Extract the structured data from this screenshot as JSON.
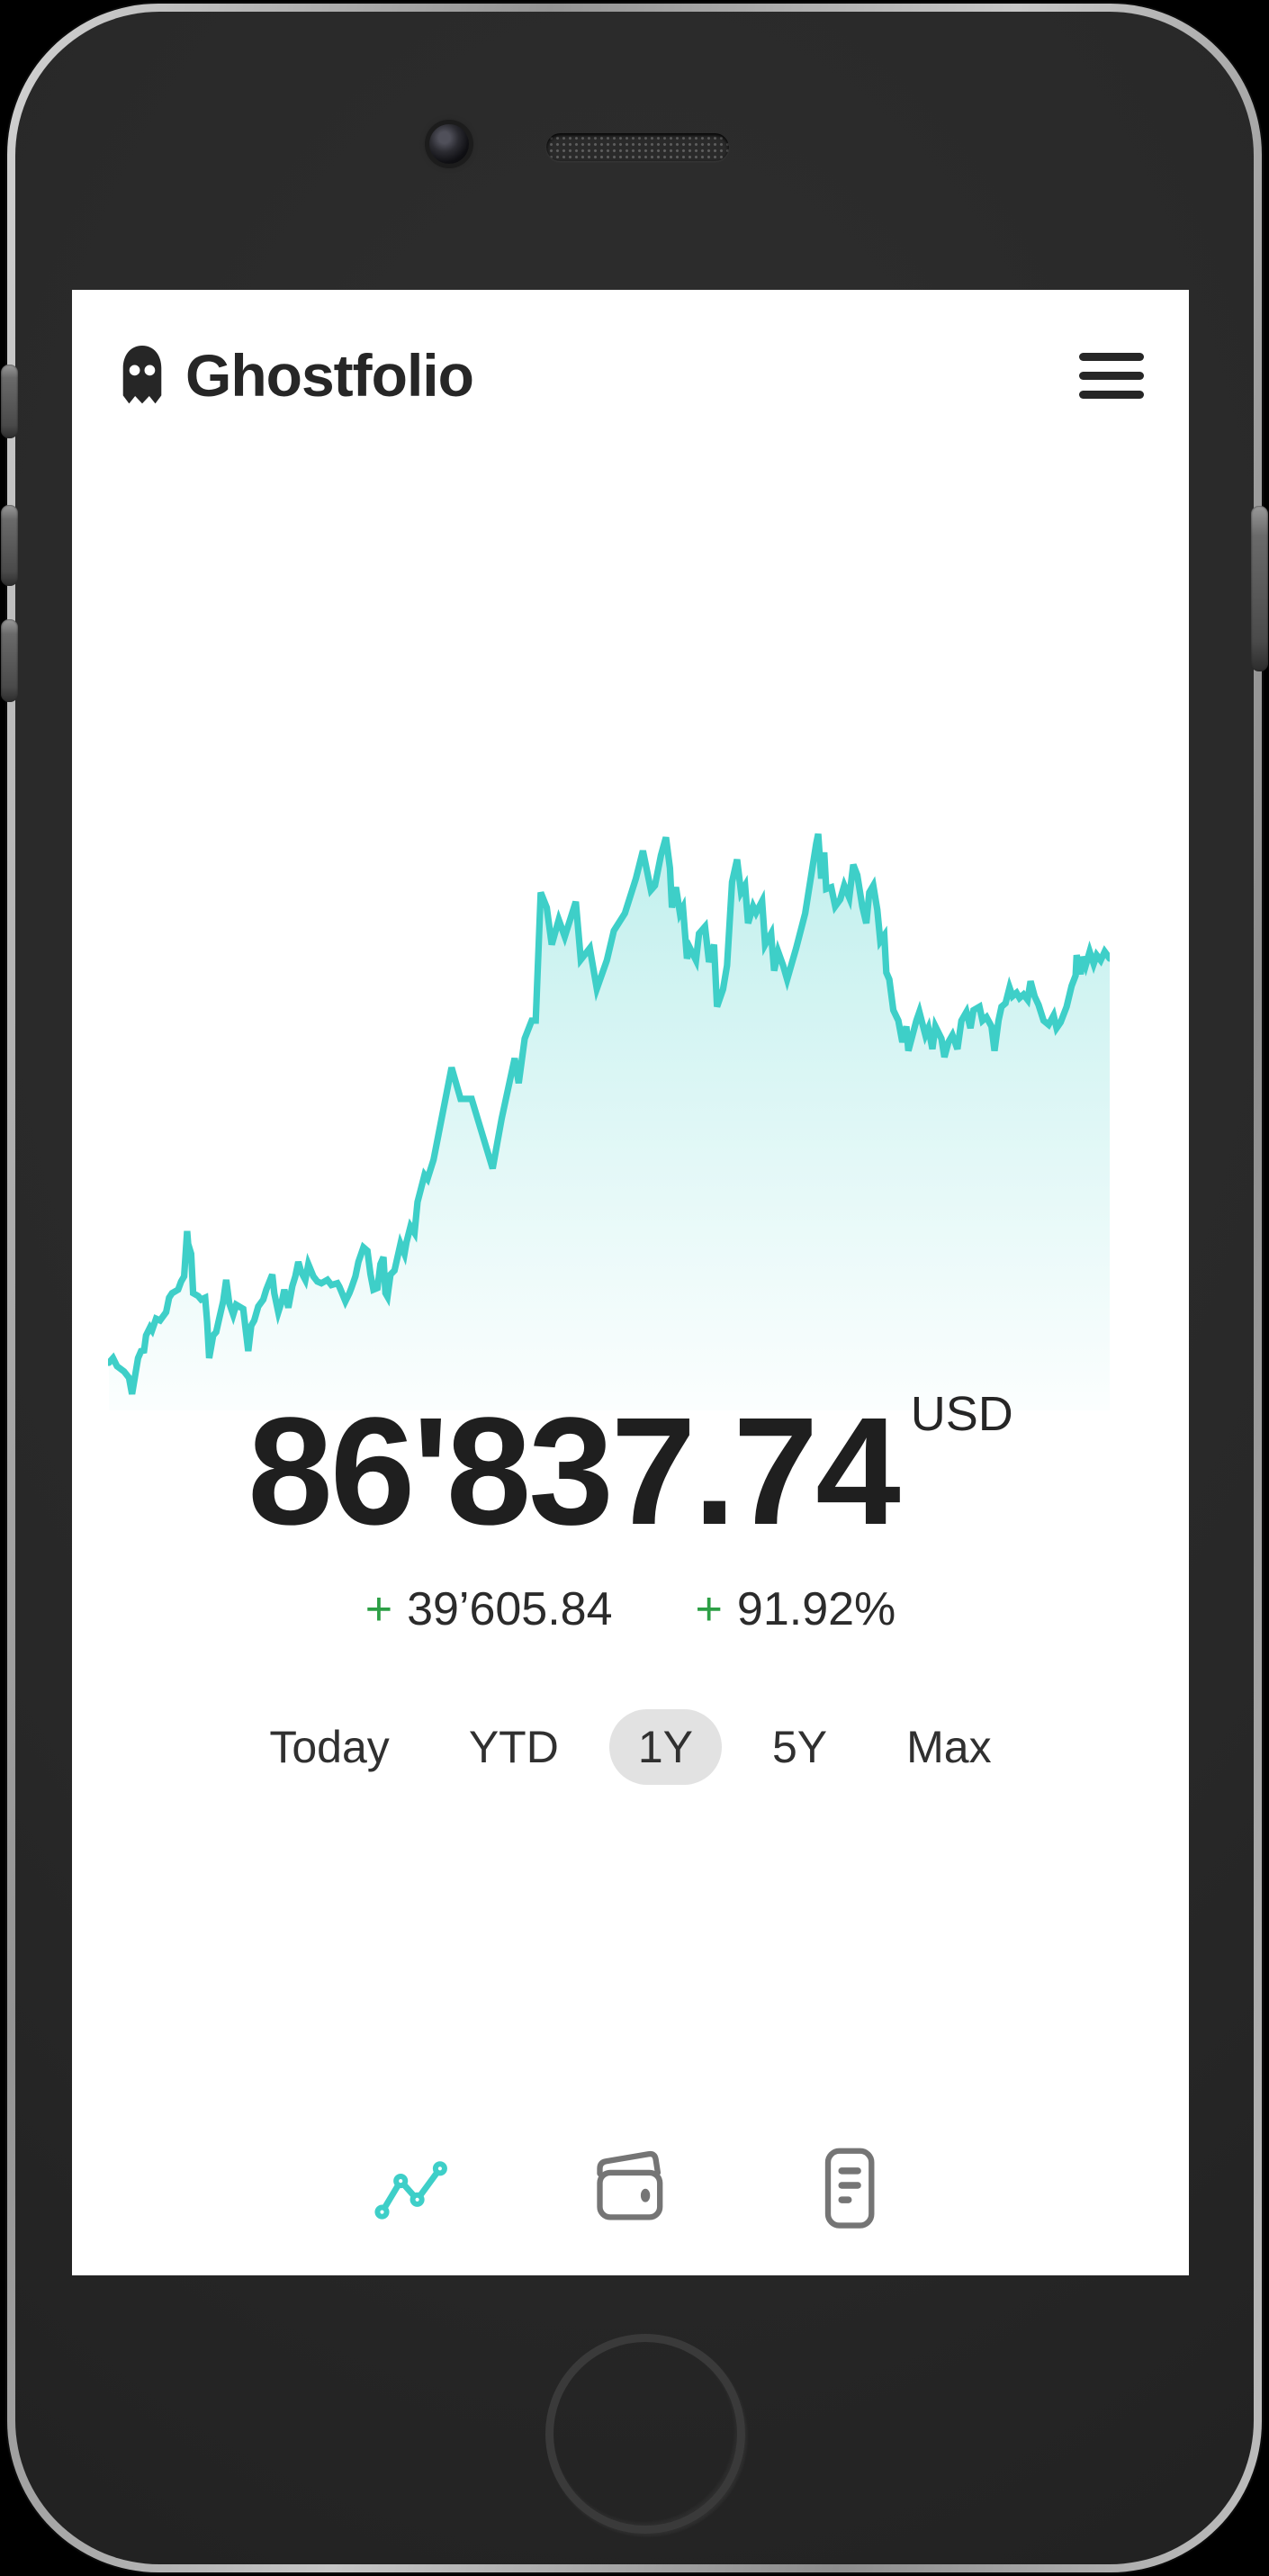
{
  "app": {
    "title": "Ghostfolio"
  },
  "header": {
    "logo_icon": "ghost-icon",
    "menu_icon": "hamburger-icon"
  },
  "portfolio": {
    "value": "86'837.74",
    "currency": "USD",
    "change_sign": "+",
    "change_absolute": "39’605.84",
    "change_percent": "91.92%"
  },
  "ranges": {
    "options": [
      "Today",
      "YTD",
      "1Y",
      "5Y",
      "Max"
    ],
    "selected": "1Y"
  },
  "bottom_nav": {
    "items": [
      {
        "icon": "performance-chart-icon",
        "active": true
      },
      {
        "icon": "wallet-icon",
        "active": false
      },
      {
        "icon": "report-icon",
        "active": false
      }
    ]
  },
  "colors": {
    "accent_teal": "#3ecfc8",
    "positive_green": "#2c9f45",
    "text_dark": "#262626",
    "pill_gray": "#e2e2e2",
    "inactive_icon_gray": "#757575",
    "screen_bg": "#ffffff"
  },
  "chart_data": {
    "type": "area",
    "title": "Portfolio performance (1Y)",
    "x_axis": "time (1 year, unlabeled)",
    "y_axis": "portfolio value (unlabeled, normalized 0-100)",
    "grid": false,
    "legend": false,
    "line_color": "#3ecfc8",
    "fill": "teal gradient fading to white",
    "points": [
      [
        0.1,
        6.5
      ],
      [
        0.5,
        7.3
      ],
      [
        0.9,
        5.9
      ],
      [
        1.6,
        5.0
      ],
      [
        2.1,
        3.9
      ],
      [
        2.4,
        1.1
      ],
      [
        3.0,
        7.3
      ],
      [
        3.3,
        8.5
      ],
      [
        3.6,
        8.6
      ],
      [
        3.8,
        11.2
      ],
      [
        4.2,
        12.6
      ],
      [
        4.4,
        12.1
      ],
      [
        4.8,
        14.1
      ],
      [
        5.2,
        13.8
      ],
      [
        5.8,
        15.2
      ],
      [
        6.1,
        17.7
      ],
      [
        6.4,
        18.5
      ],
      [
        7.0,
        19.1
      ],
      [
        7.3,
        20.5
      ],
      [
        7.6,
        21.4
      ],
      [
        7.9,
        29.2
      ],
      [
        8.0,
        27.0
      ],
      [
        8.3,
        25.3
      ],
      [
        8.5,
        18.5
      ],
      [
        9.0,
        18.0
      ],
      [
        9.3,
        17.4
      ],
      [
        9.7,
        17.7
      ],
      [
        9.9,
        13.5
      ],
      [
        10.1,
        7.3
      ],
      [
        10.5,
        11.2
      ],
      [
        10.8,
        11.8
      ],
      [
        11.1,
        14.1
      ],
      [
        11.5,
        17.1
      ],
      [
        11.8,
        20.8
      ],
      [
        12.1,
        16.8
      ],
      [
        12.5,
        14.8
      ],
      [
        12.8,
        16.5
      ],
      [
        13.5,
        15.8
      ],
      [
        14.0,
        8.5
      ],
      [
        14.3,
        12.9
      ],
      [
        14.6,
        13.8
      ],
      [
        15.0,
        16.2
      ],
      [
        15.5,
        17.4
      ],
      [
        15.8,
        19.1
      ],
      [
        16.4,
        21.7
      ],
      [
        16.6,
        18.5
      ],
      [
        17.0,
        15.2
      ],
      [
        17.4,
        17.4
      ],
      [
        17.6,
        19.1
      ],
      [
        18.0,
        16.0
      ],
      [
        18.4,
        19.7
      ],
      [
        18.7,
        21.4
      ],
      [
        19.0,
        23.9
      ],
      [
        19.3,
        22.1
      ],
      [
        19.7,
        20.8
      ],
      [
        20.0,
        23.5
      ],
      [
        20.5,
        21.4
      ],
      [
        20.9,
        20.5
      ],
      [
        21.3,
        20.2
      ],
      [
        21.9,
        20.8
      ],
      [
        22.3,
        19.9
      ],
      [
        22.9,
        20.2
      ],
      [
        23.1,
        19.6
      ],
      [
        23.7,
        17.1
      ],
      [
        24.1,
        18.5
      ],
      [
        24.3,
        19.4
      ],
      [
        24.7,
        21.4
      ],
      [
        25.0,
        23.9
      ],
      [
        25.5,
        26.4
      ],
      [
        25.9,
        25.8
      ],
      [
        26.2,
        21.8
      ],
      [
        26.5,
        19.1
      ],
      [
        26.9,
        19.4
      ],
      [
        27.2,
        23.5
      ],
      [
        27.5,
        24.7
      ],
      [
        27.7,
        18.5
      ],
      [
        27.9,
        17.9
      ],
      [
        28.2,
        21.7
      ],
      [
        28.6,
        22.4
      ],
      [
        29.2,
        27.0
      ],
      [
        29.6,
        25.3
      ],
      [
        29.8,
        27.3
      ],
      [
        30.2,
        30.0
      ],
      [
        30.6,
        28.9
      ],
      [
        30.9,
        34.2
      ],
      [
        31.2,
        36.2
      ],
      [
        31.6,
        38.9
      ],
      [
        31.9,
        38.2
      ],
      [
        32.5,
        41.5
      ],
      [
        34.3,
        57.4
      ],
      [
        35.2,
        52.0
      ],
      [
        36.3,
        52.0
      ],
      [
        37.7,
        44.0
      ],
      [
        38.4,
        40.0
      ],
      [
        39.3,
        48.6
      ],
      [
        40.6,
        59.0
      ],
      [
        41.0,
        54.7
      ],
      [
        41.6,
        62.4
      ],
      [
        42.3,
        65.5
      ],
      [
        42.7,
        65.5
      ],
      [
        43.2,
        87.6
      ],
      [
        43.8,
        85.0
      ],
      [
        44.3,
        78.6
      ],
      [
        45.0,
        82.9
      ],
      [
        45.6,
        80.0
      ],
      [
        46.7,
        86.0
      ],
      [
        47.2,
        76.0
      ],
      [
        48.1,
        78.0
      ],
      [
        48.8,
        71.0
      ],
      [
        49.8,
        75.9
      ],
      [
        50.5,
        81.0
      ],
      [
        51.6,
        84.0
      ],
      [
        52.7,
        90.0
      ],
      [
        53.4,
        94.8
      ],
      [
        54.2,
        88.0
      ],
      [
        54.6,
        88.8
      ],
      [
        55.2,
        94.0
      ],
      [
        55.7,
        97.1
      ],
      [
        56.1,
        91.8
      ],
      [
        56.3,
        85.0
      ],
      [
        56.7,
        88.5
      ],
      [
        57.1,
        84.0
      ],
      [
        57.4,
        85.0
      ],
      [
        57.8,
        76.2
      ],
      [
        58.1,
        78.0
      ],
      [
        58.7,
        75.9
      ],
      [
        59.0,
        80.5
      ],
      [
        59.6,
        81.7
      ],
      [
        60.0,
        75.6
      ],
      [
        60.5,
        78.6
      ],
      [
        60.8,
        67.9
      ],
      [
        61.4,
        70.9
      ],
      [
        61.8,
        75.0
      ],
      [
        62.3,
        89.4
      ],
      [
        62.8,
        93.3
      ],
      [
        63.2,
        87.6
      ],
      [
        63.6,
        88.8
      ],
      [
        63.9,
        82.3
      ],
      [
        64.4,
        85.2
      ],
      [
        64.7,
        84.1
      ],
      [
        65.3,
        86.1
      ],
      [
        65.6,
        78.6
      ],
      [
        66.2,
        80.5
      ],
      [
        66.5,
        74.1
      ],
      [
        66.9,
        77.4
      ],
      [
        67.4,
        75.0
      ],
      [
        67.8,
        72.6
      ],
      [
        68.7,
        78.0
      ],
      [
        69.6,
        84.0
      ],
      [
        70.7,
        96.0
      ],
      [
        70.9,
        97.7
      ],
      [
        71.2,
        90.0
      ],
      [
        71.5,
        94.5
      ],
      [
        71.7,
        88.2
      ],
      [
        72.2,
        88.5
      ],
      [
        72.6,
        85.2
      ],
      [
        73.1,
        86.4
      ],
      [
        73.5,
        88.8
      ],
      [
        74.0,
        86.7
      ],
      [
        74.4,
        92.4
      ],
      [
        74.8,
        90.6
      ],
      [
        75.3,
        85.2
      ],
      [
        75.7,
        82.3
      ],
      [
        76.0,
        87.6
      ],
      [
        76.4,
        88.8
      ],
      [
        76.8,
        84.6
      ],
      [
        77.1,
        79.2
      ],
      [
        77.5,
        80.2
      ],
      [
        77.7,
        73.8
      ],
      [
        78.0,
        72.6
      ],
      [
        78.4,
        67.3
      ],
      [
        78.9,
        65.5
      ],
      [
        79.3,
        61.8
      ],
      [
        79.7,
        64.5
      ],
      [
        79.9,
        60.3
      ],
      [
        80.7,
        65.5
      ],
      [
        81.0,
        67.0
      ],
      [
        81.6,
        63.0
      ],
      [
        81.9,
        64.2
      ],
      [
        82.3,
        60.6
      ],
      [
        82.6,
        64.5
      ],
      [
        83.2,
        62.4
      ],
      [
        83.5,
        59.2
      ],
      [
        83.9,
        61.8
      ],
      [
        84.3,
        63.0
      ],
      [
        84.8,
        60.6
      ],
      [
        85.2,
        65.5
      ],
      [
        85.7,
        67.0
      ],
      [
        86.1,
        64.2
      ],
      [
        86.4,
        67.3
      ],
      [
        87.0,
        67.9
      ],
      [
        87.3,
        65.5
      ],
      [
        87.7,
        66.1
      ],
      [
        88.2,
        64.5
      ],
      [
        88.5,
        60.3
      ],
      [
        88.9,
        65.5
      ],
      [
        89.2,
        67.9
      ],
      [
        89.6,
        68.5
      ],
      [
        90.0,
        71.2
      ],
      [
        90.3,
        69.7
      ],
      [
        90.7,
        70.3
      ],
      [
        91.0,
        69.4
      ],
      [
        91.4,
        70.0
      ],
      [
        91.8,
        69.1
      ],
      [
        92.1,
        72.3
      ],
      [
        92.5,
        69.7
      ],
      [
        92.9,
        68.2
      ],
      [
        93.4,
        65.5
      ],
      [
        93.9,
        64.8
      ],
      [
        94.4,
        66.4
      ],
      [
        94.7,
        64.2
      ],
      [
        95.1,
        65.2
      ],
      [
        95.7,
        67.9
      ],
      [
        96.2,
        71.5
      ],
      [
        96.6,
        73.3
      ],
      [
        96.7,
        76.8
      ],
      [
        97.1,
        73.5
      ],
      [
        97.3,
        76.5
      ],
      [
        97.6,
        75.0
      ],
      [
        98.0,
        77.4
      ],
      [
        98.4,
        75.3
      ],
      [
        98.7,
        76.8
      ],
      [
        99.1,
        75.9
      ],
      [
        99.5,
        77.4
      ],
      [
        100.0,
        76.2
      ]
    ]
  }
}
